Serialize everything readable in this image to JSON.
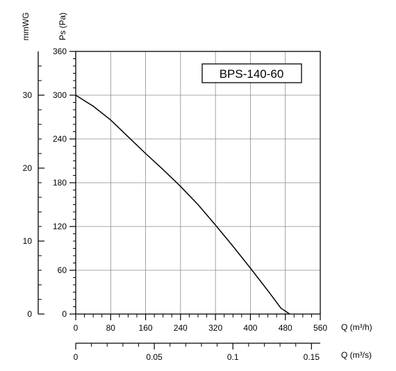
{
  "chart_data": {
    "type": "line",
    "title": "BPS-140-60",
    "xlabel": "Q (m³/h)",
    "ylabel": "Ps (Pa)",
    "x_ticks": [
      0,
      80,
      160,
      240,
      320,
      400,
      480,
      560
    ],
    "y_ticks": [
      0,
      60,
      120,
      180,
      240,
      300,
      360
    ],
    "xlim": [
      0,
      560
    ],
    "ylim": [
      0,
      360
    ],
    "grid": true,
    "series": [
      {
        "x": [
          0,
          40,
          80,
          120,
          160,
          200,
          240,
          280,
          320,
          360,
          400,
          440,
          470,
          490
        ],
        "y": [
          300,
          285,
          266,
          243,
          220,
          198,
          175,
          150,
          122,
          93,
          63,
          32,
          8,
          0
        ]
      }
    ],
    "secondary_left_axis": {
      "label": "mmWG",
      "ticks": [
        0,
        10,
        20,
        30
      ],
      "lim": [
        0,
        36
      ]
    },
    "secondary_bottom_axis": {
      "label": "Q (m³/s)",
      "tick_labels": [
        "0",
        "0.05",
        "0.1",
        "0.15"
      ],
      "ticks": [
        0,
        0.05,
        0.1,
        0.15
      ],
      "lim": [
        0,
        0.1556
      ]
    }
  }
}
